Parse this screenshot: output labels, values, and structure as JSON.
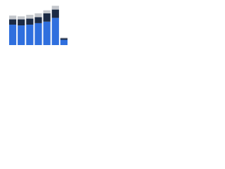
{
  "chart_data": {
    "type": "stacked-bar",
    "categories": [
      null,
      null,
      null,
      null,
      null,
      null,
      null
    ],
    "series": [
      {
        "color": "#2f6fde",
        "values": [
          27,
          26,
          27,
          29,
          31,
          36,
          7
        ]
      },
      {
        "color": "#1b2a44",
        "values": [
          7,
          8,
          8,
          8,
          11,
          11,
          2
        ]
      },
      {
        "color": "#c4c7cc",
        "values": [
          5,
          4,
          5,
          5,
          4,
          5,
          1
        ]
      }
    ],
    "ylim": [
      0,
      55
    ]
  }
}
